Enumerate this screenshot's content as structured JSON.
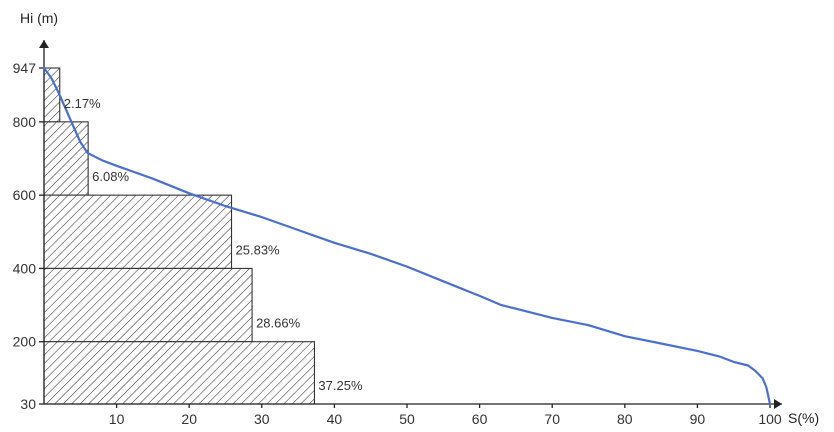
{
  "chart_data": {
    "type": "area",
    "title": "",
    "xlabel": "S(%)",
    "ylabel": "Hi (m)",
    "xlim": [
      0,
      100
    ],
    "ylim": [
      30,
      947
    ],
    "x_ticks": [
      10,
      20,
      30,
      40,
      50,
      60,
      70,
      80,
      90,
      100
    ],
    "y_ticks": [
      30,
      200,
      400,
      600,
      800,
      947
    ],
    "grid": false,
    "legend": "none",
    "colors": {
      "curve": "#4a6fd0",
      "hatch": "#333333",
      "axis": "#222222"
    },
    "bands": [
      {
        "y_low": 800,
        "y_high": 947,
        "width": 2.17,
        "label": "2.17%"
      },
      {
        "y_low": 600,
        "y_high": 800,
        "width": 6.08,
        "label": "6.08%"
      },
      {
        "y_low": 400,
        "y_high": 600,
        "width": 25.83,
        "label": "25.83%"
      },
      {
        "y_low": 200,
        "y_high": 400,
        "width": 28.66,
        "label": "28.66%"
      },
      {
        "y_low": 30,
        "y_high": 200,
        "width": 37.25,
        "label": "37.25%"
      }
    ],
    "series": [
      {
        "type": "line",
        "x": [
          0,
          1,
          2,
          3,
          4,
          5,
          6,
          8,
          10,
          15,
          20,
          25,
          30,
          35,
          40,
          45,
          50,
          55,
          60,
          63,
          65,
          70,
          75,
          80,
          85,
          90,
          93,
          95,
          97,
          98,
          99,
          99.5,
          100
        ],
        "y": [
          947,
          920,
          880,
          835,
          790,
          745,
          715,
          695,
          680,
          645,
          605,
          570,
          540,
          505,
          470,
          440,
          405,
          365,
          325,
          300,
          290,
          265,
          245,
          215,
          195,
          175,
          160,
          145,
          135,
          120,
          100,
          75,
          30
        ]
      }
    ]
  }
}
